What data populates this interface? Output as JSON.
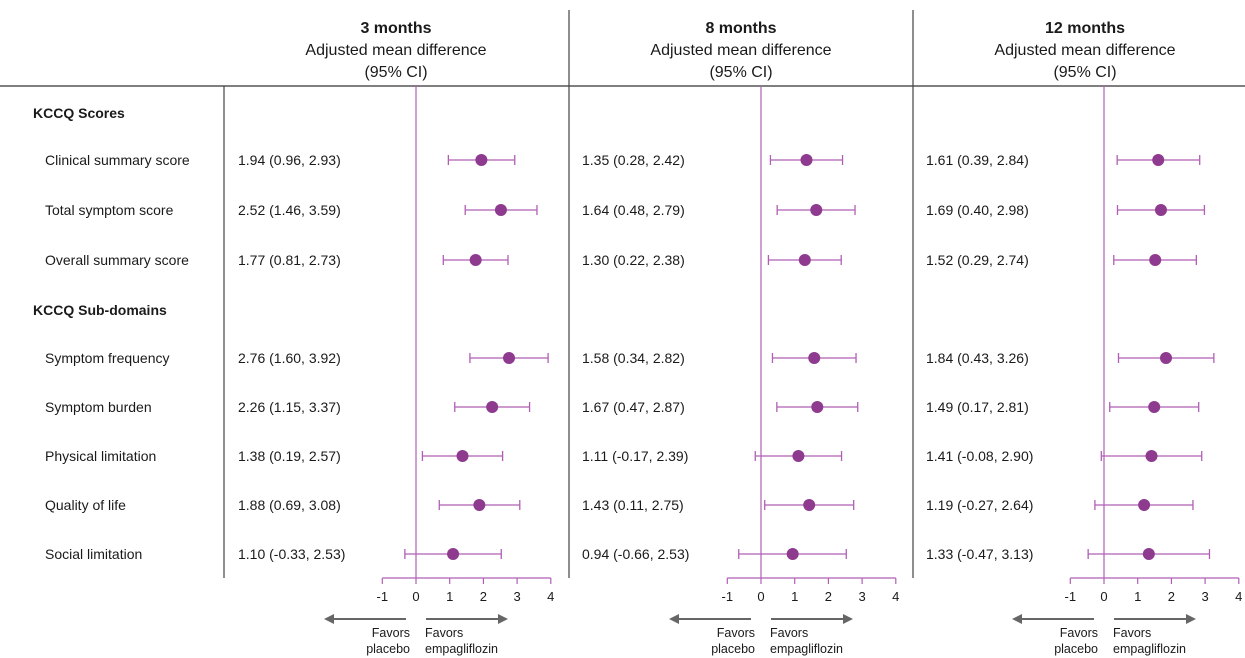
{
  "chart_data": {
    "type": "forest",
    "sections": [
      {
        "title": "KCCQ Scores",
        "rows": [
          "Clinical summary score",
          "Total symptom score",
          "Overall summary score"
        ]
      },
      {
        "title": "KCCQ Sub-domains",
        "rows": [
          "Symptom frequency",
          "Symptom burden",
          "Physical limitation",
          "Quality of life",
          "Social limitation"
        ]
      }
    ],
    "panels": [
      {
        "title": "3 months",
        "subtitle_line1": "Adjusted mean difference",
        "subtitle_line2": "(95% CI)",
        "xlim": [
          -1,
          4
        ],
        "ticks": [
          "-1",
          "0",
          "1",
          "2",
          "3",
          "4"
        ],
        "estimates": [
          {
            "est": 1.94,
            "lo": 0.96,
            "hi": 2.93,
            "label": "1.94 (0.96, 2.93)"
          },
          {
            "est": 2.52,
            "lo": 1.46,
            "hi": 3.59,
            "label": "2.52 (1.46, 3.59)"
          },
          {
            "est": 1.77,
            "lo": 0.81,
            "hi": 2.73,
            "label": "1.77 (0.81, 2.73)"
          },
          {
            "est": 2.76,
            "lo": 1.6,
            "hi": 3.92,
            "label": "2.76 (1.60, 3.92)"
          },
          {
            "est": 2.26,
            "lo": 1.15,
            "hi": 3.37,
            "label": "2.26 (1.15, 3.37)"
          },
          {
            "est": 1.38,
            "lo": 0.19,
            "hi": 2.57,
            "label": "1.38 (0.19, 2.57)"
          },
          {
            "est": 1.88,
            "lo": 0.69,
            "hi": 3.08,
            "label": "1.88 (0.69, 3.08)"
          },
          {
            "est": 1.1,
            "lo": -0.33,
            "hi": 2.53,
            "label": "1.10 (-0.33, 2.53)"
          }
        ]
      },
      {
        "title": "8 months",
        "subtitle_line1": "Adjusted mean difference",
        "subtitle_line2": "(95% CI)",
        "xlim": [
          -1,
          4
        ],
        "ticks": [
          "-1",
          "0",
          "1",
          "2",
          "3",
          "4"
        ],
        "estimates": [
          {
            "est": 1.35,
            "lo": 0.28,
            "hi": 2.42,
            "label": "1.35 (0.28, 2.42)"
          },
          {
            "est": 1.64,
            "lo": 0.48,
            "hi": 2.79,
            "label": "1.64 (0.48, 2.79)"
          },
          {
            "est": 1.3,
            "lo": 0.22,
            "hi": 2.38,
            "label": "1.30 (0.22, 2.38)"
          },
          {
            "est": 1.58,
            "lo": 0.34,
            "hi": 2.82,
            "label": "1.58 (0.34, 2.82)"
          },
          {
            "est": 1.67,
            "lo": 0.47,
            "hi": 2.87,
            "label": "1.67 (0.47, 2.87)"
          },
          {
            "est": 1.11,
            "lo": -0.17,
            "hi": 2.39,
            "label": "1.11 (-0.17, 2.39)"
          },
          {
            "est": 1.43,
            "lo": 0.11,
            "hi": 2.75,
            "label": "1.43 (0.11, 2.75)"
          },
          {
            "est": 0.94,
            "lo": -0.66,
            "hi": 2.53,
            "label": "0.94 (-0.66, 2.53)"
          }
        ]
      },
      {
        "title": "12 months",
        "subtitle_line1": "Adjusted mean difference",
        "subtitle_line2": "(95% CI)",
        "xlim": [
          -1,
          4
        ],
        "ticks": [
          "-1",
          "0",
          "1",
          "2",
          "3",
          "4"
        ],
        "estimates": [
          {
            "est": 1.61,
            "lo": 0.39,
            "hi": 2.84,
            "label": "1.61 (0.39, 2.84)"
          },
          {
            "est": 1.69,
            "lo": 0.4,
            "hi": 2.98,
            "label": "1.69 (0.40, 2.98)"
          },
          {
            "est": 1.52,
            "lo": 0.29,
            "hi": 2.74,
            "label": "1.52 (0.29, 2.74)"
          },
          {
            "est": 1.84,
            "lo": 0.43,
            "hi": 3.26,
            "label": "1.84 (0.43, 3.26)"
          },
          {
            "est": 1.49,
            "lo": 0.17,
            "hi": 2.81,
            "label": "1.49 (0.17, 2.81)"
          },
          {
            "est": 1.41,
            "lo": -0.08,
            "hi": 2.9,
            "label": "1.41 (-0.08, 2.90)"
          },
          {
            "est": 1.19,
            "lo": -0.27,
            "hi": 2.64,
            "label": "1.19 (-0.27, 2.64)"
          },
          {
            "est": 1.33,
            "lo": -0.47,
            "hi": 3.13,
            "label": "1.33 (-0.47, 3.13)"
          }
        ]
      }
    ],
    "favors_left": [
      "Favors",
      "placebo"
    ],
    "favors_right": [
      "Favors",
      "empagliflozin"
    ],
    "colors": {
      "marker": "#8e3a8f",
      "axis": "#b15fb5",
      "separator": "#444444",
      "arrow": "#666666"
    }
  }
}
